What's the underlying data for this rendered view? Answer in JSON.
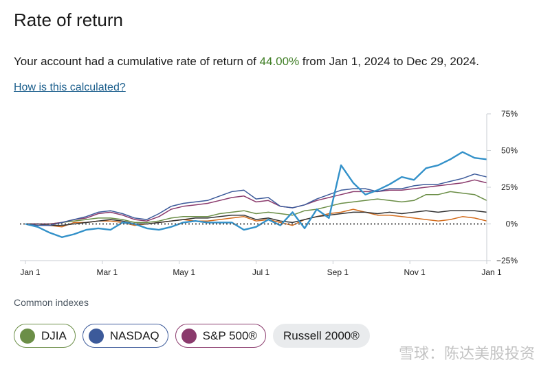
{
  "page": {
    "title": "Rate of return",
    "summary_prefix": "Your account had a cumulative rate of return of ",
    "summary_pct": "44.00%",
    "summary_suffix": " from Jan 1, 2024 to Dec 29, 2024.",
    "calc_link": "How is this calculated?",
    "indexes_title": "Common indexes",
    "watermark": "雪球：陈达美股投资"
  },
  "indexes": [
    {
      "label": "DJIA",
      "color": "#6b8e47",
      "border": "#6b8e47"
    },
    {
      "label": "NASDAQ",
      "color": "#3c5a9a",
      "border": "#3c5a9a"
    },
    {
      "label": "S&P 500®",
      "color": "#8a3a6c",
      "border": "#8a3a6c"
    },
    {
      "label": "Russell 2000®",
      "color": null,
      "border": null
    }
  ],
  "chart_data": {
    "type": "line",
    "x_ticks": [
      "Jan 1",
      "Mar 1",
      "May 1",
      "Jul 1",
      "Sep 1",
      "Nov 1",
      "Jan 1"
    ],
    "y_ticks": [
      "75%",
      "50%",
      "25%",
      "0%",
      "−25%"
    ],
    "ylim": [
      -25,
      75
    ],
    "y_tick_values": [
      75,
      50,
      25,
      0,
      -25
    ],
    "grid": false,
    "zero_line": "dotted",
    "series": [
      {
        "color": "#3391c9",
        "values": [
          0,
          -2,
          -6,
          -9,
          -7,
          -4,
          -3,
          -4,
          1,
          0,
          -3,
          -4,
          -2,
          1,
          2,
          1,
          1,
          1,
          -4,
          -2,
          3,
          -1,
          8,
          -3,
          10,
          4,
          40,
          28,
          20,
          23,
          27,
          32,
          30,
          38,
          40,
          44,
          49,
          45,
          44
        ]
      },
      {
        "color": "#3c5a9a",
        "values": [
          0,
          -1,
          -1,
          1,
          3,
          5,
          8,
          9,
          7,
          4,
          3,
          7,
          12,
          14,
          15,
          16,
          19,
          22,
          23,
          17,
          18,
          12,
          11,
          13,
          17,
          20,
          23,
          24,
          24,
          22,
          24,
          24,
          26,
          27,
          27,
          29,
          31,
          34,
          32
        ]
      },
      {
        "color": "#8a3a6c",
        "values": [
          0,
          0,
          0,
          1,
          3,
          4,
          7,
          8,
          6,
          3,
          2,
          5,
          10,
          12,
          13,
          14,
          16,
          18,
          19,
          15,
          16,
          12,
          11,
          13,
          16,
          18,
          20,
          22,
          22,
          22,
          23,
          23,
          24,
          25,
          26,
          27,
          28,
          30,
          28
        ]
      },
      {
        "color": "#6b8e47",
        "values": [
          0,
          0,
          0,
          1,
          2,
          3,
          4,
          4,
          3,
          1,
          1,
          2,
          4,
          5,
          5,
          5,
          7,
          8,
          9,
          7,
          8,
          7,
          6,
          9,
          10,
          12,
          14,
          15,
          16,
          17,
          16,
          15,
          16,
          20,
          20,
          22,
          21,
          20,
          16
        ]
      },
      {
        "color": "#333333",
        "values": [
          0,
          0,
          -1,
          -1,
          0,
          1,
          2,
          3,
          2,
          0,
          0,
          1,
          2,
          3,
          4,
          4,
          5,
          6,
          6,
          3,
          4,
          2,
          1,
          3,
          5,
          6,
          7,
          8,
          8,
          7,
          8,
          7,
          8,
          9,
          8,
          9,
          9,
          9,
          8
        ]
      },
      {
        "color": "#d36b1b",
        "values": [
          0,
          0,
          -1,
          -2,
          1,
          1,
          2,
          2,
          1,
          -1,
          0,
          1,
          2,
          3,
          2,
          2,
          3,
          4,
          5,
          2,
          3,
          1,
          -1,
          3,
          5,
          7,
          8,
          10,
          8,
          6,
          6,
          5,
          4,
          3,
          2,
          3,
          5,
          4,
          2
        ]
      }
    ]
  }
}
